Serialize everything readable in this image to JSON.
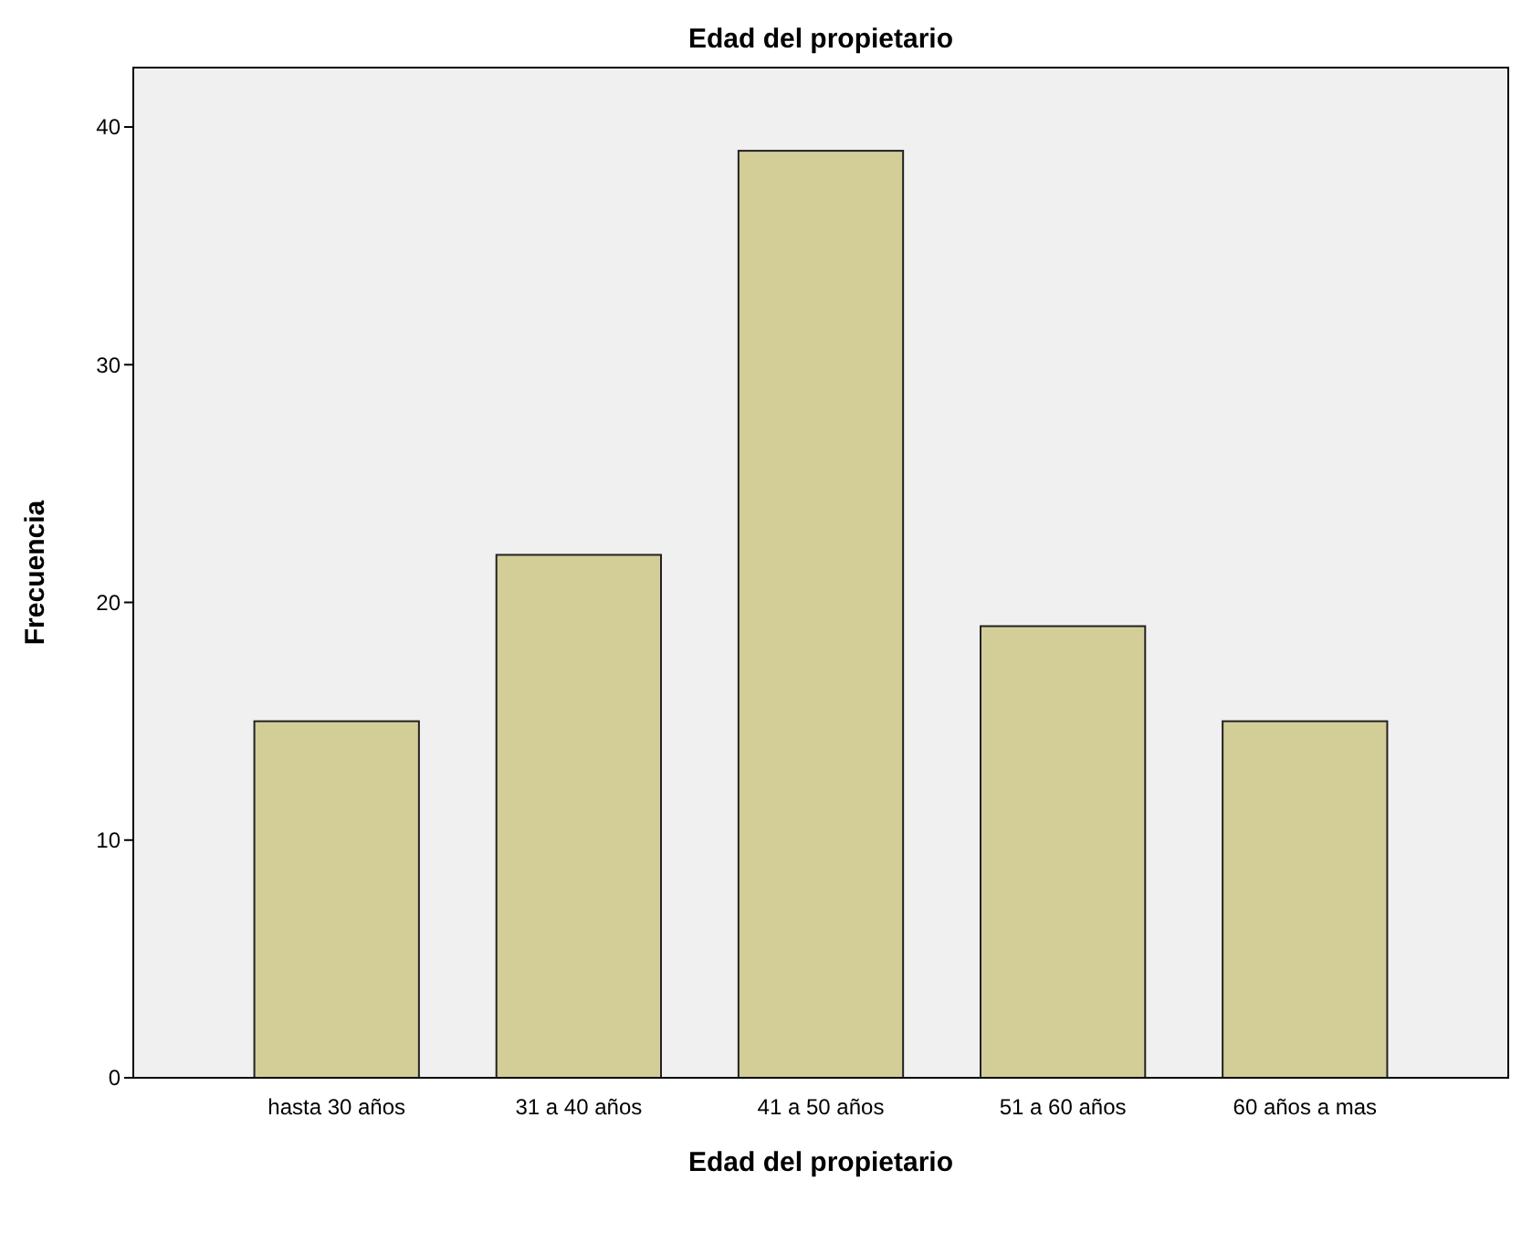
{
  "chart_data": {
    "type": "bar",
    "title": "Edad del propietario",
    "xlabel": "Edad del propietario",
    "ylabel": "Frecuencia",
    "categories": [
      "hasta 30 años",
      "31 a 40 años",
      "41 a 50 años",
      "51 a 60 años",
      "60 años a mas"
    ],
    "values": [
      15,
      22,
      39,
      19,
      15
    ],
    "color": "#d3ce98",
    "ylim": [
      0,
      42.5
    ],
    "yticks": [
      0,
      10,
      20,
      30,
      40
    ],
    "grid": false
  }
}
